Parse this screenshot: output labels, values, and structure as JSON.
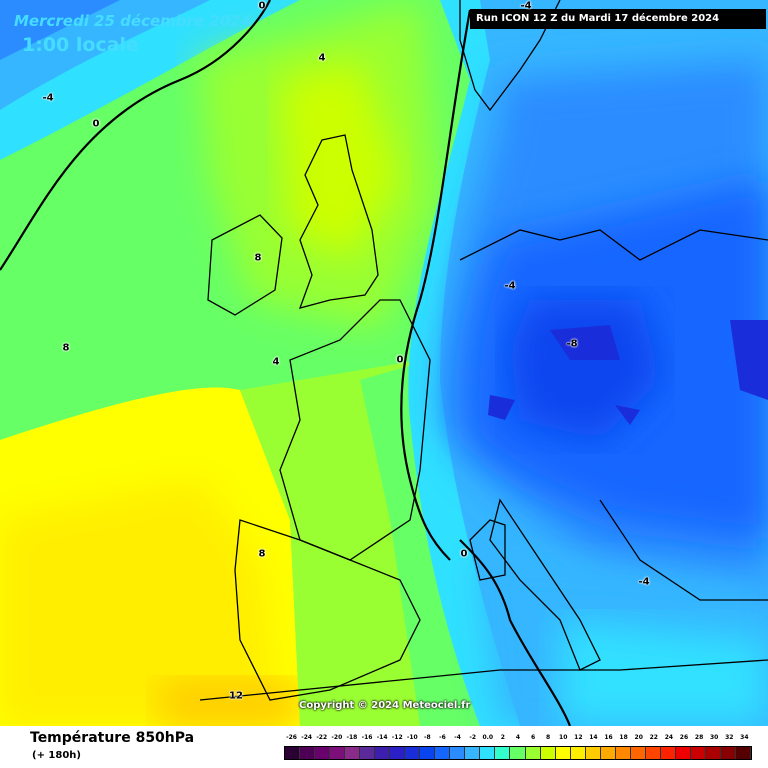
{
  "header": {
    "date_label": "Mercredi 25 décembre 2024",
    "time_label": "1:00 locale",
    "run_label": "Run ICON 12 Z du Mardi 17 décembre 2024"
  },
  "map": {
    "copyright": "Copyright © 2024 Meteociel.fr",
    "isotherm_labels": [
      {
        "text": "0",
        "region": "north-sea-top"
      },
      {
        "text": "-4",
        "region": "scandinavia-top"
      },
      {
        "text": "4",
        "region": "north-atlantic"
      },
      {
        "text": "-4",
        "region": "north-atlantic-west"
      },
      {
        "text": "0",
        "region": "north-atlantic-west"
      },
      {
        "text": "8",
        "region": "ireland"
      },
      {
        "text": "8",
        "region": "atlantic"
      },
      {
        "text": "4",
        "region": "biscay"
      },
      {
        "text": "0",
        "region": "france"
      },
      {
        "text": "-4",
        "region": "germany"
      },
      {
        "text": "-8",
        "region": "central-europe"
      },
      {
        "text": "8",
        "region": "iberia"
      },
      {
        "text": "12",
        "region": "morocco"
      },
      {
        "text": "0",
        "region": "italy"
      },
      {
        "text": "-4",
        "region": "balkans"
      }
    ]
  },
  "footer": {
    "parameter": "Température 850hPa",
    "horizon": "(+ 180h)"
  },
  "legend": {
    "labels": [
      "-26",
      "-24",
      "-22",
      "-20",
      "-18",
      "-16",
      "-14",
      "-12",
      "-10",
      "-8",
      "-6",
      "-4",
      "-2",
      "0.0",
      "2",
      "4",
      "6",
      "8",
      "10",
      "12",
      "14",
      "16",
      "18",
      "20",
      "22",
      "24",
      "26",
      "28",
      "30",
      "32",
      "34"
    ],
    "colors": [
      "#2b0033",
      "#4d0055",
      "#6a006e",
      "#7d0f7a",
      "#8a2a8a",
      "#5a2a9a",
      "#3d1fb0",
      "#2b20c8",
      "#1a2ddb",
      "#0a44ee",
      "#1466ff",
      "#2a8cff",
      "#36b6ff",
      "#30e0ff",
      "#33ffcc",
      "#66ff66",
      "#99ff33",
      "#ccff00",
      "#ffff00",
      "#ffee00",
      "#ffcc00",
      "#ffaa00",
      "#ff8800",
      "#ff6600",
      "#ff4400",
      "#ff2200",
      "#ee0000",
      "#cc0000",
      "#aa0000",
      "#880000",
      "#550000"
    ]
  }
}
